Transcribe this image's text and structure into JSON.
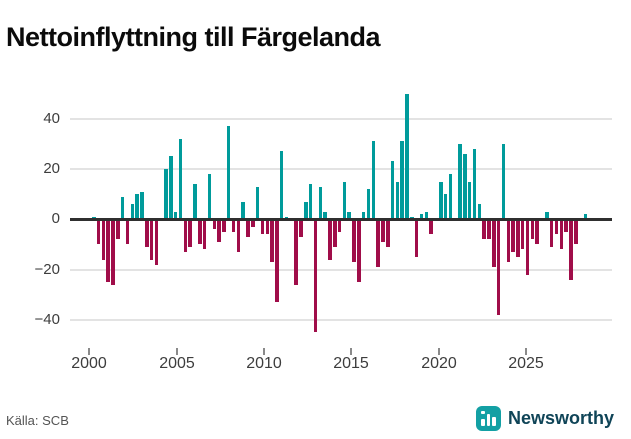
{
  "header": {
    "title": "Nettoinflyttning till Färgelanda"
  },
  "footer": {
    "source_label": "Källa: SCB",
    "brand": "Newsworthy"
  },
  "colors": {
    "positive_bar": "#009b9b",
    "negative_bar": "#a00d49",
    "zero_line": "#2f2f2f",
    "gridline": "#e3e3e3",
    "axis_text": "#3d3d3d",
    "brand_icon_teal": "#13a0a4",
    "brand_text": "#0f4457"
  },
  "chart_data": {
    "type": "bar",
    "title": "Nettoinflyttning till Färgelanda",
    "xlabel": "",
    "ylabel": "",
    "x_tick_labels": [
      "2000",
      "2005",
      "2010",
      "2015",
      "2020",
      "2025"
    ],
    "y_ticks": [
      40,
      20,
      0,
      -20,
      -40
    ],
    "ylim": [
      -50,
      53
    ],
    "grid": true,
    "legend": false,
    "categories": [
      "2000Q1",
      "2000Q2",
      "2000Q3",
      "2000Q4",
      "2001Q1",
      "2001Q2",
      "2001Q3",
      "2001Q4",
      "2002Q1",
      "2002Q2",
      "2002Q3",
      "2002Q4",
      "2003Q1",
      "2003Q2",
      "2003Q3",
      "2003Q4",
      "2004Q1",
      "2004Q2",
      "2004Q3",
      "2004Q4",
      "2005Q1",
      "2005Q2",
      "2005Q3",
      "2005Q4",
      "2006Q1",
      "2006Q2",
      "2006Q3",
      "2006Q4",
      "2007Q1",
      "2007Q2",
      "2007Q3",
      "2007Q4",
      "2008Q1",
      "2008Q2",
      "2008Q3",
      "2008Q4",
      "2009Q1",
      "2009Q2",
      "2009Q3",
      "2009Q4",
      "2010Q1",
      "2010Q2",
      "2010Q3",
      "2010Q4",
      "2011Q1",
      "2011Q2",
      "2011Q3",
      "2011Q4",
      "2012Q1",
      "2012Q2",
      "2012Q3",
      "2012Q4",
      "2013Q1",
      "2013Q2",
      "2013Q3",
      "2013Q4",
      "2014Q1",
      "2014Q2",
      "2014Q3",
      "2014Q4",
      "2015Q1",
      "2015Q2",
      "2015Q3",
      "2015Q4",
      "2016Q1",
      "2016Q2",
      "2016Q3",
      "2016Q4",
      "2017Q1",
      "2017Q2",
      "2017Q3",
      "2017Q4",
      "2018Q1",
      "2018Q2",
      "2018Q3",
      "2018Q4",
      "2019Q1",
      "2019Q2",
      "2019Q3",
      "2019Q4",
      "2020Q1",
      "2020Q2",
      "2020Q3",
      "2020Q4",
      "2021Q1",
      "2021Q2",
      "2021Q3",
      "2021Q4",
      "2022Q1",
      "2022Q2",
      "2022Q3",
      "2022Q4",
      "2023Q1",
      "2023Q2",
      "2023Q3",
      "2023Q4",
      "2024Q1",
      "2024Q2",
      "2024Q3",
      "2024Q4",
      "2025Q1",
      "2025Q2",
      "2025Q3"
    ],
    "values": [
      1,
      -10,
      -16,
      -25,
      -26,
      -8,
      9,
      -10,
      6,
      10,
      11,
      -11,
      -16,
      -18,
      0,
      20,
      25,
      3,
      32,
      -13,
      -11,
      14,
      -10,
      -12,
      18,
      -4,
      -9,
      -5,
      37,
      -5,
      -13,
      7,
      -7,
      -3,
      13,
      -6,
      -6,
      -17,
      -33,
      27,
      1,
      0,
      -26,
      -7,
      7,
      14,
      -45,
      13,
      3,
      -16,
      -11,
      -5,
      15,
      3,
      -17,
      -25,
      3,
      12,
      31,
      -19,
      -9,
      -11,
      23,
      15,
      31,
      50,
      1,
      -15,
      2,
      3,
      -6,
      0,
      15,
      10,
      18,
      0,
      30,
      26,
      15,
      28,
      6,
      -8,
      -8,
      -19,
      -38,
      30,
      -17,
      -13,
      -15,
      -12,
      -22,
      -8,
      -10,
      0,
      3,
      -11,
      -6,
      -12,
      -5,
      -24,
      -10,
      0,
      2
    ]
  }
}
